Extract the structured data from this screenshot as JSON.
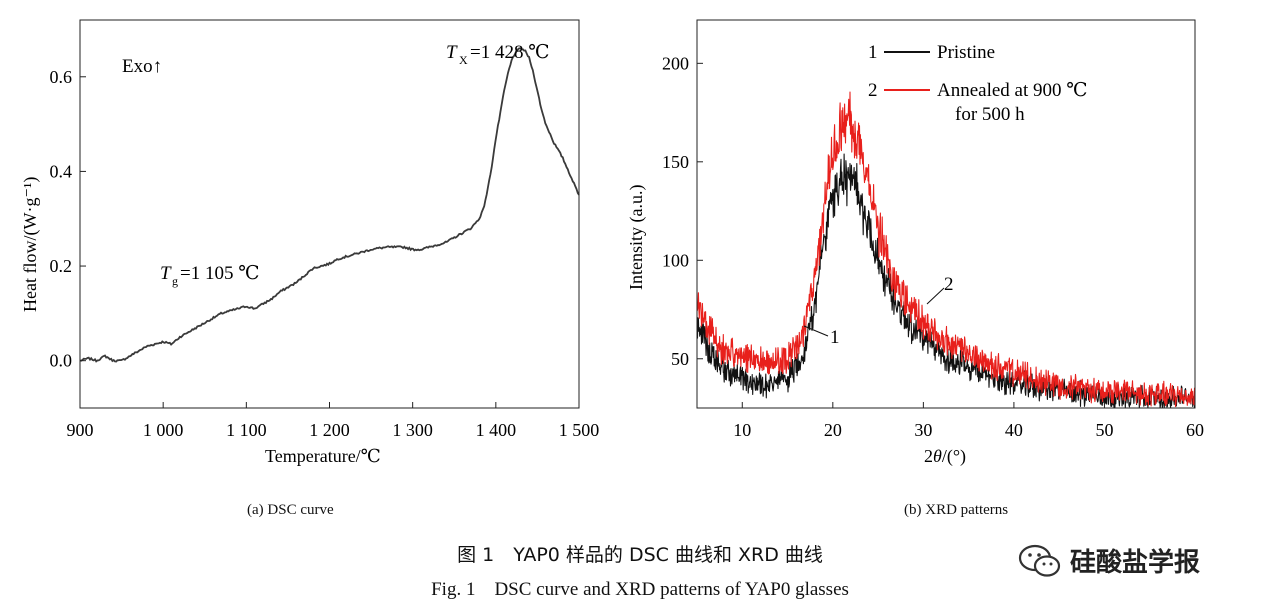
{
  "chart_data": [
    {
      "type": "line",
      "panel_label": "(a) DSC curve",
      "xlabel": "Temperature/℃",
      "ylabel": "Heat flow/(W·g⁻¹)",
      "xlim": [
        900,
        1500
      ],
      "ylim": [
        -0.1,
        0.72
      ],
      "xticks": [
        900,
        1000,
        1100,
        1200,
        1300,
        1400,
        1500
      ],
      "xtick_labels": [
        "900",
        "1 000",
        "1 100",
        "1 200",
        "1 300",
        "1 400",
        "1 500"
      ],
      "yticks": [
        0.0,
        0.2,
        0.4,
        0.6
      ],
      "ytick_labels": [
        "0.0",
        "0.2",
        "0.4",
        "0.6"
      ],
      "grid": false,
      "annotations": {
        "exo": "Exo↑",
        "tg_sym": "T",
        "tg_sub": "g",
        "tg_val": "=1 105 ℃",
        "tx_sym": "T",
        "tx_sub": "X",
        "tx_val": "=1 428 ℃"
      },
      "series": [
        {
          "color": "#3a3a3a",
          "x": [
            900,
            910,
            920,
            930,
            940,
            950,
            960,
            970,
            980,
            990,
            1000,
            1010,
            1020,
            1030,
            1040,
            1050,
            1060,
            1070,
            1080,
            1090,
            1100,
            1110,
            1120,
            1130,
            1140,
            1150,
            1160,
            1170,
            1180,
            1190,
            1200,
            1210,
            1220,
            1230,
            1240,
            1250,
            1260,
            1270,
            1280,
            1290,
            1300,
            1310,
            1320,
            1330,
            1340,
            1350,
            1360,
            1370,
            1380,
            1385,
            1390,
            1395,
            1400,
            1405,
            1410,
            1415,
            1420,
            1425,
            1430,
            1435,
            1440,
            1445,
            1450,
            1455,
            1460,
            1465,
            1470,
            1475,
            1480,
            1485,
            1490,
            1495,
            1500
          ],
          "y": [
            0.0,
            0.005,
            0.0,
            0.01,
            0.0,
            0.0,
            0.01,
            0.02,
            0.03,
            0.035,
            0.04,
            0.035,
            0.05,
            0.06,
            0.07,
            0.08,
            0.09,
            0.1,
            0.105,
            0.11,
            0.115,
            0.11,
            0.12,
            0.13,
            0.145,
            0.155,
            0.165,
            0.18,
            0.195,
            0.2,
            0.205,
            0.215,
            0.22,
            0.225,
            0.23,
            0.235,
            0.238,
            0.24,
            0.24,
            0.24,
            0.235,
            0.235,
            0.24,
            0.245,
            0.25,
            0.26,
            0.27,
            0.28,
            0.3,
            0.32,
            0.36,
            0.41,
            0.47,
            0.52,
            0.57,
            0.61,
            0.64,
            0.655,
            0.66,
            0.655,
            0.64,
            0.61,
            0.57,
            0.53,
            0.5,
            0.48,
            0.46,
            0.445,
            0.43,
            0.41,
            0.39,
            0.37,
            0.35
          ]
        }
      ]
    },
    {
      "type": "line",
      "panel_label": "(b) XRD patterns",
      "xlabel_sym": "θ",
      "xlabel_pre": "2",
      "xlabel_post": "/(°)",
      "ylabel": "Intensity (a.u.)",
      "xlim": [
        5,
        60
      ],
      "ylim": [
        25,
        222
      ],
      "xticks": [
        10,
        20,
        30,
        40,
        50,
        60
      ],
      "xtick_labels": [
        "10",
        "20",
        "30",
        "40",
        "50",
        "60"
      ],
      "yticks": [
        50,
        100,
        150,
        200
      ],
      "ytick_labels": [
        "50",
        "100",
        "150",
        "200"
      ],
      "grid": false,
      "legend_position": "top-right",
      "legend": [
        {
          "num": "1",
          "label": "Pristine"
        },
        {
          "num": "2",
          "label": "Annealed at 900 ℃",
          "label2": "for 500 h"
        }
      ],
      "curve_labels": [
        "1",
        "2"
      ],
      "series": [
        {
          "name": "Pristine",
          "color": "#111111",
          "noise": 12,
          "x": [
            5,
            7,
            9,
            11,
            13,
            15,
            16,
            17,
            18,
            19,
            20,
            21,
            22,
            23,
            24,
            25,
            26,
            27,
            28,
            30,
            32,
            35,
            38,
            42,
            46,
            50,
            55,
            60
          ],
          "y": [
            68,
            48,
            42,
            38,
            37,
            40,
            46,
            57,
            78,
            110,
            132,
            142,
            140,
            132,
            117,
            100,
            88,
            78,
            71,
            60,
            52,
            45,
            40,
            36,
            33,
            31,
            30,
            30
          ]
        },
        {
          "name": "Annealed at 900 ℃ for 500 h",
          "color": "#e8201c",
          "noise": 12,
          "x": [
            5,
            7,
            9,
            11,
            13,
            15,
            16,
            17,
            18,
            19,
            20,
            21,
            22,
            23,
            24,
            25,
            26,
            27,
            28,
            30,
            32,
            35,
            38,
            42,
            46,
            50,
            55,
            60
          ],
          "y": [
            80,
            58,
            52,
            50,
            48,
            50,
            56,
            68,
            93,
            125,
            152,
            168,
            170,
            158,
            138,
            116,
            100,
            88,
            79,
            68,
            60,
            52,
            46,
            40,
            36,
            34,
            32,
            31
          ]
        }
      ]
    }
  ],
  "captions": {
    "zh": "图 1　YAP0 样品的 DSC 曲线和 XRD 曲线",
    "en": "Fig. 1　DSC curve and XRD patterns of YAP0 glasses"
  },
  "watermark": {
    "text": "硅酸盐学报",
    "icon": "wechat-icon"
  }
}
